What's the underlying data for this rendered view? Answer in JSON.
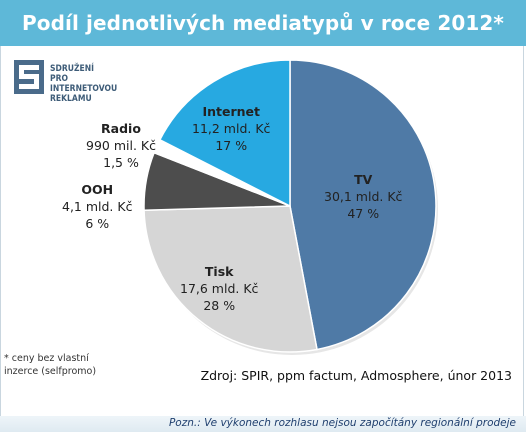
{
  "title": "Podíl jednotlivých mediatypů v roce 2012*",
  "logo": {
    "text": "SDRUŽENÍ\nPRO INTERNETOVOU\nREKLAMU"
  },
  "footnote": "* ceny bez  vlastní\ninzerce (selfpromo)",
  "source": "Zdroj: SPIR, ppm factum, Admosphere, únor 2013",
  "note": "Pozn.: Ve výkonech rozhlasu nejsou započítány regionální prodeje",
  "colors": {
    "title_bg": "#5eb8d8",
    "tv": "#4f7aa6",
    "tisk": "#d6d6d6",
    "ooh": "#4d4d4d",
    "radio": "#ffffff",
    "internet": "#27a9e1"
  },
  "chart_data": {
    "type": "pie",
    "slices": [
      {
        "name": "TV",
        "value_text": "30,1 mld. Kč",
        "percent_text": "47 %",
        "value": 30.1,
        "percent": 47
      },
      {
        "name": "Tisk",
        "value_text": "17,6 mld. Kč",
        "percent_text": "28 %",
        "value": 17.6,
        "percent": 28
      },
      {
        "name": "OOH",
        "value_text": "4,1 mld. Kč",
        "percent_text": "6 %",
        "value": 4.1,
        "percent": 6
      },
      {
        "name": "Radio",
        "value_text": "990 mil. Kč",
        "percent_text": "1,5 %",
        "value": 0.99,
        "percent": 1.5
      },
      {
        "name": "Internet",
        "value_text": "11,2 mld. Kč",
        "percent_text": "17 %",
        "value": 11.2,
        "percent": 17
      }
    ]
  }
}
